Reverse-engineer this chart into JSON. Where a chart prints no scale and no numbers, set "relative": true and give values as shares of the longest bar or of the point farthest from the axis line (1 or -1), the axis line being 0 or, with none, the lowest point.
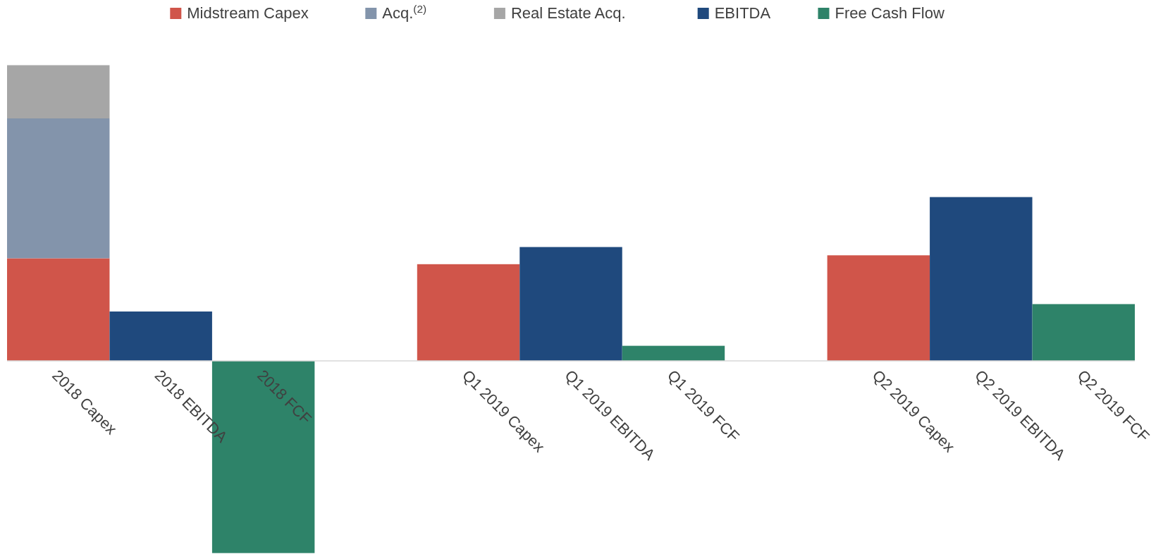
{
  "chart_data": {
    "type": "bar",
    "stacked": true,
    "relative": true,
    "legend": "top",
    "categories": [
      "2018 Capex",
      "2018 EBITDA",
      "2018 FCF",
      null,
      "Q1 2019 Capex",
      "Q1 2019 EBITDA",
      "Q1 2019 FCF",
      null,
      "Q2 2019 Capex",
      "Q2 2019 EBITDA",
      "Q2 2019 FCF"
    ],
    "series": [
      {
        "name": "Midstream Capex",
        "color": "#d0554a",
        "values": [
          0.347,
          null,
          null,
          null,
          0.327,
          null,
          null,
          null,
          0.357,
          null,
          null
        ]
      },
      {
        "name": "Acq.$^{(2)}$",
        "color": "#8394ab",
        "values": [
          0.473,
          null,
          null,
          null,
          null,
          null,
          null,
          null,
          null,
          null,
          null
        ]
      },
      {
        "name": "Real Estate Acq.",
        "color": "#a6a6a6",
        "values": [
          0.18,
          null,
          null,
          null,
          null,
          null,
          null,
          null,
          null,
          null,
          null
        ]
      },
      {
        "name": "EBITDA",
        "color": "#1f497d",
        "values": [
          null,
          0.167,
          null,
          null,
          null,
          0.385,
          null,
          null,
          null,
          0.554,
          null
        ]
      },
      {
        "name": "Free Cash Flow",
        "color": "#2e8369",
        "values": [
          null,
          null,
          -0.65,
          null,
          null,
          null,
          0.051,
          null,
          null,
          null,
          0.192
        ]
      }
    ]
  }
}
